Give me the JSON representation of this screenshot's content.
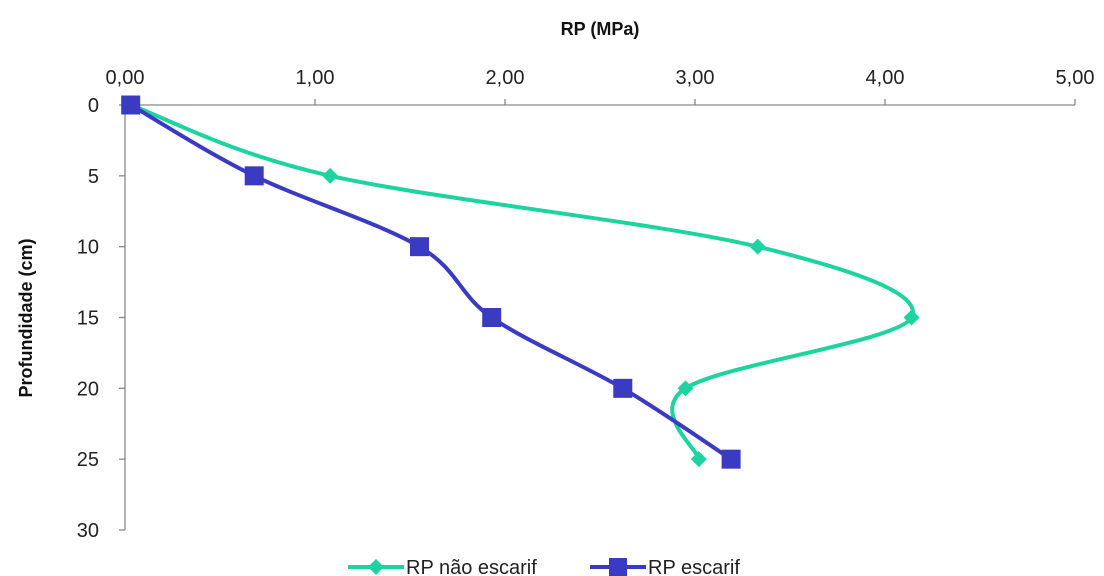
{
  "chart_data": {
    "type": "line",
    "title": "",
    "xlabel": "RP (MPa)",
    "ylabel": "Profundidade (cm)",
    "x_axis_position": "top",
    "y_axis_reversed": true,
    "xlim": [
      0,
      5
    ],
    "ylim": [
      0,
      30
    ],
    "x_ticks": [
      "0,00",
      "1,00",
      "2,00",
      "3,00",
      "4,00",
      "5,00"
    ],
    "y_ticks": [
      "0",
      "5",
      "10",
      "15",
      "20",
      "25",
      "30"
    ],
    "grid": false,
    "legend_position": "bottom",
    "series": [
      {
        "name": "RP não escarif",
        "color": "#1dd3a0",
        "marker": "diamond",
        "smooth": true,
        "x": [
          0.03,
          1.08,
          3.33,
          4.14,
          2.95,
          3.02
        ],
        "y": [
          0,
          5,
          10,
          15,
          20,
          25
        ]
      },
      {
        "name": "RP escarif",
        "color": "#3a3ac2",
        "marker": "square",
        "smooth": true,
        "x": [
          0.03,
          0.68,
          1.55,
          1.93,
          2.62,
          3.19
        ],
        "y": [
          0,
          5,
          10,
          15,
          20,
          25
        ]
      }
    ]
  }
}
